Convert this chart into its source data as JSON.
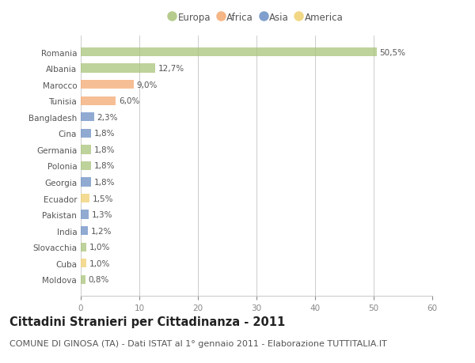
{
  "countries": [
    "Romania",
    "Albania",
    "Marocco",
    "Tunisia",
    "Bangladesh",
    "Cina",
    "Germania",
    "Polonia",
    "Georgia",
    "Ecuador",
    "Pakistan",
    "India",
    "Slovacchia",
    "Cuba",
    "Moldova"
  ],
  "values": [
    50.5,
    12.7,
    9.0,
    6.0,
    2.3,
    1.8,
    1.8,
    1.8,
    1.8,
    1.5,
    1.3,
    1.2,
    1.0,
    1.0,
    0.8
  ],
  "labels": [
    "50,5%",
    "12,7%",
    "9,0%",
    "6,0%",
    "2,3%",
    "1,8%",
    "1,8%",
    "1,8%",
    "1,8%",
    "1,5%",
    "1,3%",
    "1,2%",
    "1,0%",
    "1,0%",
    "0,8%"
  ],
  "continents": [
    "Europa",
    "Europa",
    "Africa",
    "Africa",
    "Asia",
    "Asia",
    "Europa",
    "Europa",
    "Asia",
    "America",
    "Asia",
    "Asia",
    "Europa",
    "America",
    "Europa"
  ],
  "continent_colors": {
    "Europa": "#a8c47a",
    "Africa": "#f4a870",
    "Asia": "#6b8ec4",
    "America": "#f0d070"
  },
  "legend_order": [
    "Europa",
    "Africa",
    "Asia",
    "America"
  ],
  "xlim": [
    0,
    60
  ],
  "xticks": [
    0,
    10,
    20,
    30,
    40,
    50,
    60
  ],
  "title": "Cittadini Stranieri per Cittadinanza - 2011",
  "subtitle": "COMUNE DI GINOSA (TA) - Dati ISTAT al 1° gennaio 2011 - Elaborazione TUTTITALIA.IT",
  "background_color": "#ffffff",
  "grid_color": "#cccccc",
  "bar_height": 0.55,
  "title_fontsize": 10.5,
  "subtitle_fontsize": 8,
  "label_fontsize": 7.5,
  "tick_fontsize": 7.5,
  "legend_fontsize": 8.5
}
